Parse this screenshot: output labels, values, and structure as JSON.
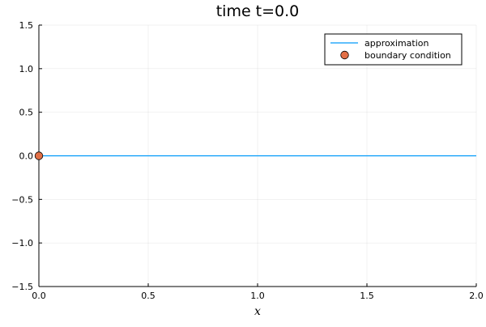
{
  "chart_data": {
    "type": "line",
    "title": "time t=0.0",
    "xlabel": "x",
    "ylabel": "",
    "xlim": [
      0.0,
      2.0
    ],
    "ylim": [
      -1.5,
      1.5
    ],
    "xticks": [
      0.0,
      0.5,
      1.0,
      1.5,
      2.0
    ],
    "xtick_labels": [
      "0.0",
      "0.5",
      "1.0",
      "1.5",
      "2.0"
    ],
    "yticks": [
      -1.5,
      -1.0,
      -0.5,
      0.0,
      0.5,
      1.0,
      1.5
    ],
    "ytick_labels": [
      "−1.5",
      "−1.0",
      "−0.5",
      "0.0",
      "0.5",
      "1.0",
      "1.5"
    ],
    "grid": true,
    "legend_position": "top-right",
    "series": [
      {
        "name": "approximation",
        "kind": "line",
        "color": "#009AFA",
        "x": [
          0.0,
          0.25,
          0.5,
          0.75,
          1.0,
          1.25,
          1.5,
          1.75,
          2.0
        ],
        "y": [
          0.0,
          0.0,
          0.0,
          0.0,
          0.0,
          0.0,
          0.0,
          0.0,
          0.0
        ]
      },
      {
        "name": "boundary condition",
        "kind": "scatter",
        "color": "#E26F46",
        "x": [
          0.0
        ],
        "y": [
          0.0
        ]
      }
    ]
  }
}
